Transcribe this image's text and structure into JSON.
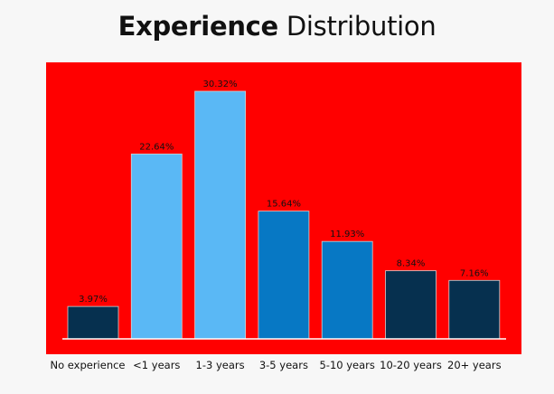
{
  "title": {
    "bold": "Experience",
    "normal": "Distribution"
  },
  "chart_data": {
    "type": "bar",
    "categories": [
      "No experience",
      "<1 years",
      "1-3 years",
      "3-5 years",
      "5-10 years",
      "10-20 years",
      "20+ years"
    ],
    "values": [
      3.97,
      22.64,
      30.32,
      15.64,
      11.93,
      8.34,
      7.16
    ],
    "labels": [
      "3.97%",
      "22.64%",
      "30.32%",
      "15.64%",
      "11.93%",
      "8.34%",
      "7.16%"
    ],
    "bar_colors": [
      "#06304f",
      "#5ab8f5",
      "#5ab8f5",
      "#0778c4",
      "#0778c4",
      "#06304f",
      "#06304f"
    ],
    "background_color": "#ff0000",
    "ylim": [
      0,
      32
    ]
  }
}
